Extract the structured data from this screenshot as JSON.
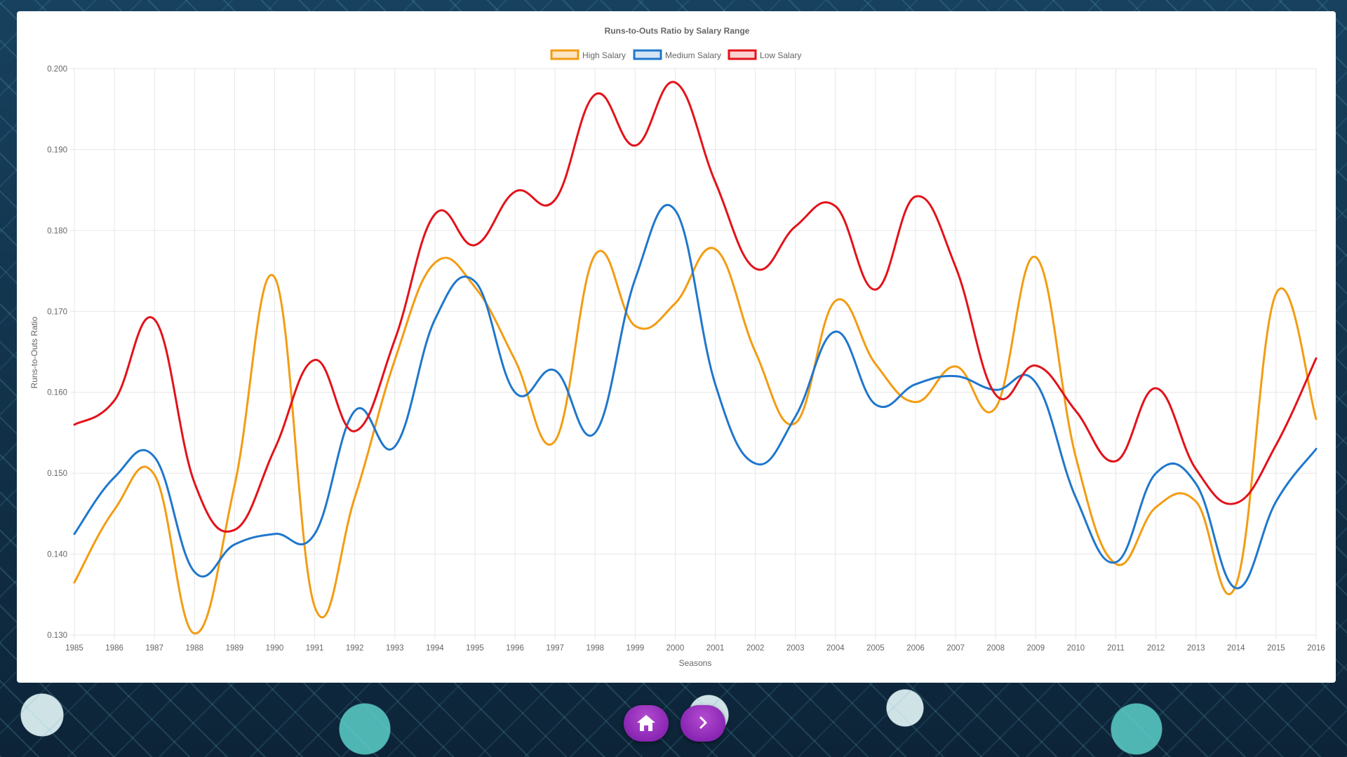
{
  "chart_data": {
    "type": "line",
    "title": "Runs-to-Outs Ratio by Salary Range",
    "xlabel": "Seasons",
    "ylabel": "Runs-to-Outs Ratio",
    "ylim": [
      0.13,
      0.2
    ],
    "y_ticks": [
      "0.130",
      "0.140",
      "0.150",
      "0.160",
      "0.170",
      "0.180",
      "0.190",
      "0.200"
    ],
    "grid": true,
    "legend_position": "top-center",
    "categories": [
      "1985",
      "1986",
      "1987",
      "1988",
      "1989",
      "1990",
      "1991",
      "1992",
      "1993",
      "1994",
      "1995",
      "1996",
      "1997",
      "1998",
      "1999",
      "2000",
      "2001",
      "2002",
      "2003",
      "2004",
      "2005",
      "2006",
      "2007",
      "2008",
      "2009",
      "2010",
      "2011",
      "2012",
      "2013",
      "2014",
      "2015",
      "2016"
    ],
    "series": [
      {
        "name": "High Salary",
        "color": "#f39c12",
        "values": [
          0.1365,
          0.1455,
          0.1498,
          0.1302,
          0.1485,
          0.1742,
          0.1335,
          0.147,
          0.164,
          0.176,
          0.173,
          0.164,
          0.154,
          0.177,
          0.1682,
          0.171,
          0.1777,
          0.165,
          0.1562,
          0.1713,
          0.1635,
          0.1588,
          0.1632,
          0.1581,
          0.1767,
          0.152,
          0.1388,
          0.1458,
          0.1465,
          0.1362,
          0.1722,
          0.1567
        ]
      },
      {
        "name": "Medium Salary",
        "color": "#1f77cc",
        "values": [
          0.1425,
          0.1495,
          0.152,
          0.1378,
          0.1412,
          0.1425,
          0.1425,
          0.1577,
          0.1533,
          0.169,
          0.1737,
          0.16,
          0.1627,
          0.155,
          0.174,
          0.1825,
          0.161,
          0.1512,
          0.157,
          0.1675,
          0.1585,
          0.161,
          0.162,
          0.1603,
          0.1612,
          0.147,
          0.139,
          0.15,
          0.1487,
          0.1358,
          0.1465,
          0.153
        ]
      },
      {
        "name": "Low Salary",
        "color": "#e3121a",
        "values": [
          0.156,
          0.159,
          0.169,
          0.1488,
          0.143,
          0.153,
          0.164,
          0.1552,
          0.1665,
          0.182,
          0.1782,
          0.1848,
          0.1838,
          0.1968,
          0.1905,
          0.1983,
          0.186,
          0.1753,
          0.1805,
          0.183,
          0.1727,
          0.1842,
          0.1755,
          0.1597,
          0.1633,
          0.1577,
          0.1515,
          0.1605,
          0.1505,
          0.1463,
          0.1535,
          0.1642
        ]
      }
    ]
  },
  "nav": {
    "home_icon": "home-icon",
    "next_icon": "chevron-right-icon",
    "button_color": "#8e2bb8"
  }
}
